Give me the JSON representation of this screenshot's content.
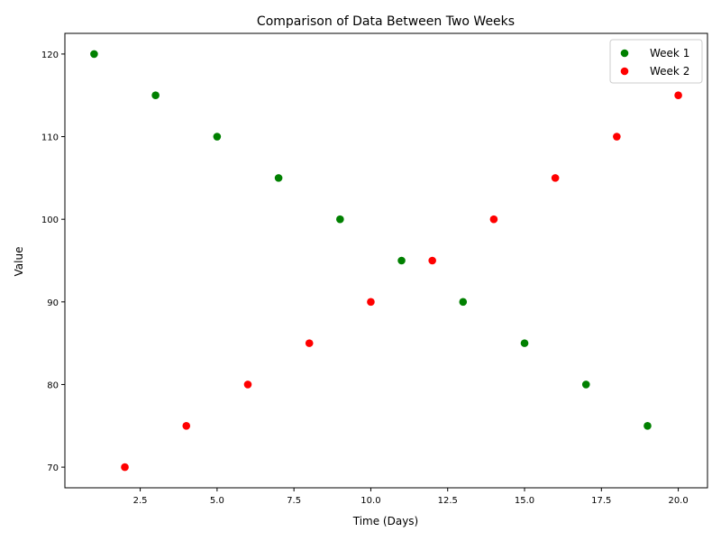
{
  "chart_data": {
    "type": "scatter",
    "title": "Comparison of Data Between Two Weeks",
    "xlabel": "Time (Days)",
    "ylabel": "Value",
    "xlim": [
      0.05,
      20.95
    ],
    "ylim": [
      67.5,
      122.5
    ],
    "xticks": [
      2.5,
      5.0,
      7.5,
      10.0,
      12.5,
      15.0,
      17.5,
      20.0
    ],
    "xtick_labels": [
      "2.5",
      "5.0",
      "7.5",
      "10.0",
      "12.5",
      "15.0",
      "17.5",
      "20.0"
    ],
    "yticks": [
      70,
      80,
      90,
      100,
      110,
      120
    ],
    "ytick_labels": [
      "70",
      "80",
      "90",
      "100",
      "110",
      "120"
    ],
    "grid": false,
    "legend_position": "top-right",
    "series": [
      {
        "name": "Week 1",
        "color": "#008000",
        "x": [
          1,
          3,
          5,
          7,
          9,
          11,
          13,
          15,
          17,
          19
        ],
        "y": [
          120,
          115,
          110,
          105,
          100,
          95,
          90,
          85,
          80,
          75
        ]
      },
      {
        "name": "Week 2",
        "color": "#ff0000",
        "x": [
          2,
          4,
          6,
          8,
          10,
          12,
          14,
          16,
          18,
          20
        ],
        "y": [
          70,
          75,
          80,
          85,
          90,
          95,
          100,
          105,
          110,
          115
        ]
      }
    ]
  }
}
